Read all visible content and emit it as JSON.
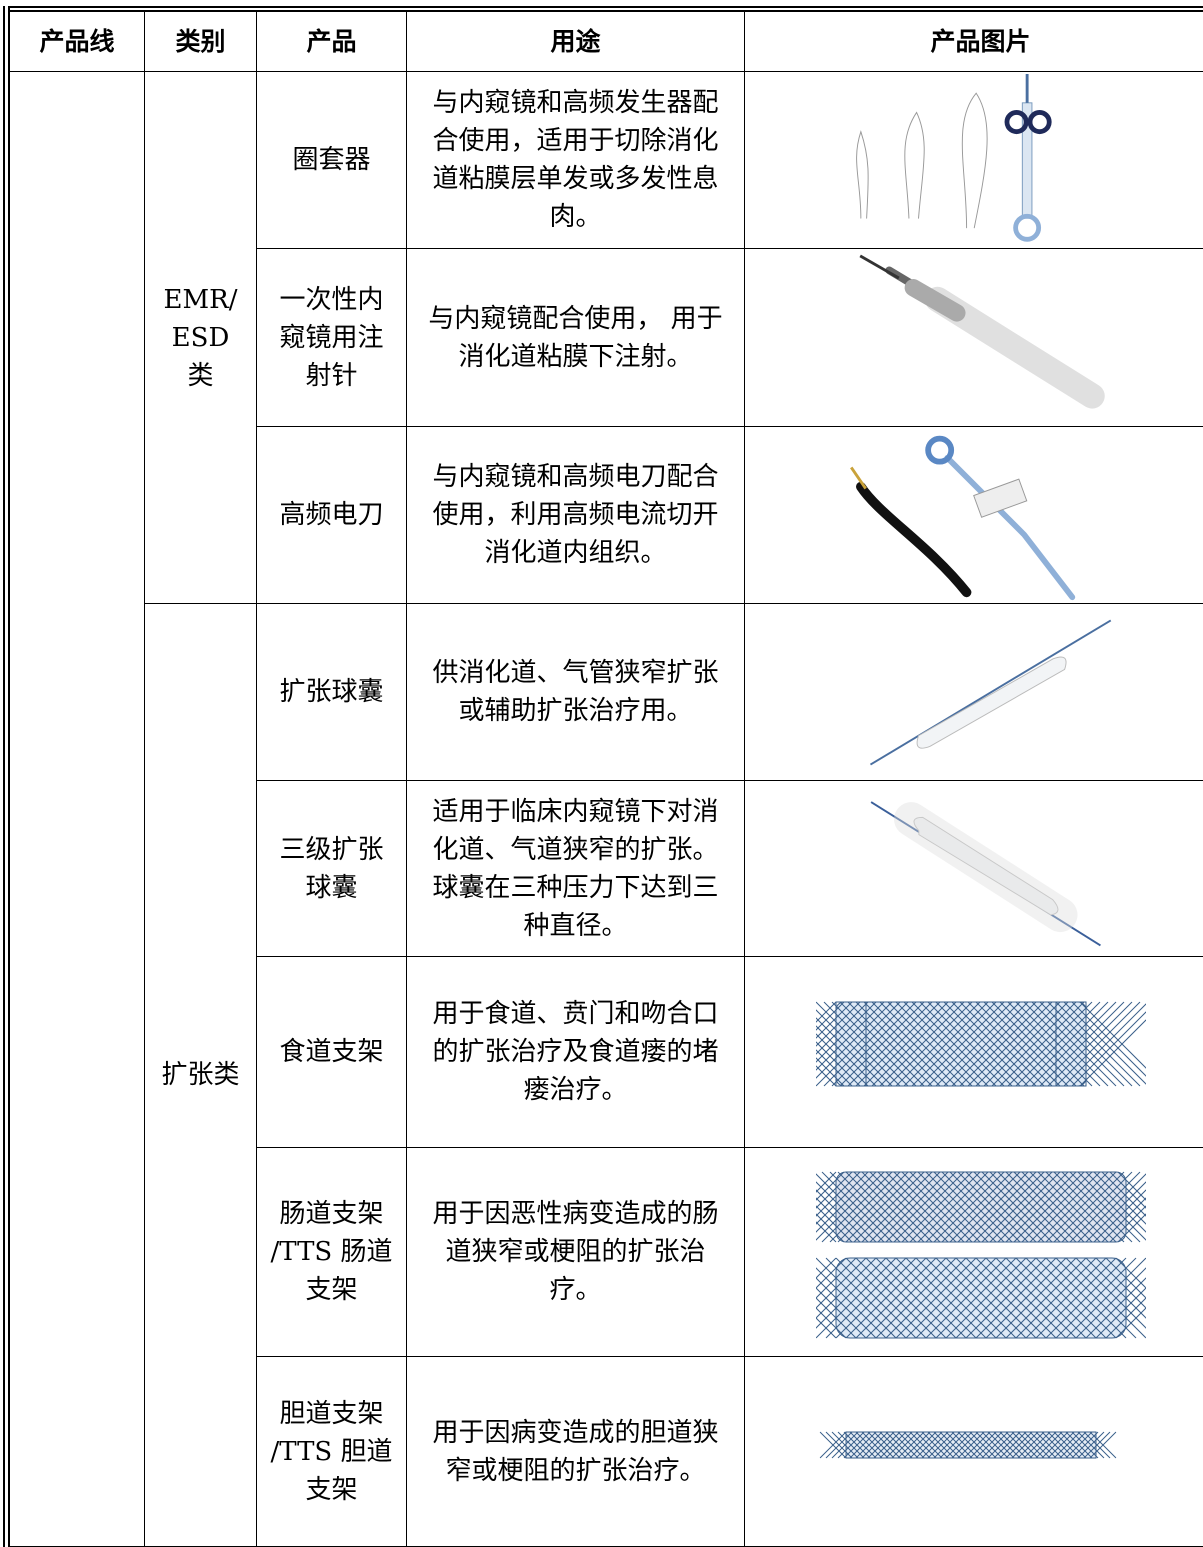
{
  "table": {
    "header": [
      "产品线",
      "类别",
      "产品",
      "用途",
      "产品图片"
    ],
    "groups": [
      {
        "category": [
          "EMR/",
          "ESD 类"
        ],
        "products": [
          {
            "name": [
              "圈套器"
            ],
            "use": "与内窥镜和高频发生器配合使用，适用于切除消化道粘膜层单发或多发性息肉。"
          },
          {
            "name": [
              "一次性内",
              "窥镜用注",
              "射针"
            ],
            "use": "与内窥镜配合使用， 用于消化道粘膜下注射。"
          },
          {
            "name": [
              "高频电刀"
            ],
            "use": "与内窥镜和高频电刀配合使用，利用高频电流切开消化道内组织。"
          }
        ]
      },
      {
        "category": [
          "扩张类"
        ],
        "products": [
          {
            "name": [
              "扩张球囊"
            ],
            "use": "供消化道、气管狭窄扩张或辅助扩张治疗用。"
          },
          {
            "name": [
              "三级扩张",
              "球囊"
            ],
            "use": "适用于临床内窥镜下对消化道、气道狭窄的扩张。球囊在三种压力下达到三种直径。"
          },
          {
            "name": [
              "食道支架"
            ],
            "use": "用于食道、贲门和吻合口的扩张治疗及食道瘘的堵瘘治疗。"
          },
          {
            "name": [
              "肠道支架",
              "/TTS 肠道",
              "支架"
            ],
            "use": "用于因恶性病变造成的肠道狭窄或梗阻的扩张治疗。"
          },
          {
            "name": [
              "胆道支架",
              "/TTS 胆道",
              "支架"
            ],
            "use": "用于因病变造成的胆道狭窄或梗阻的扩张治疗。"
          }
        ]
      }
    ]
  }
}
